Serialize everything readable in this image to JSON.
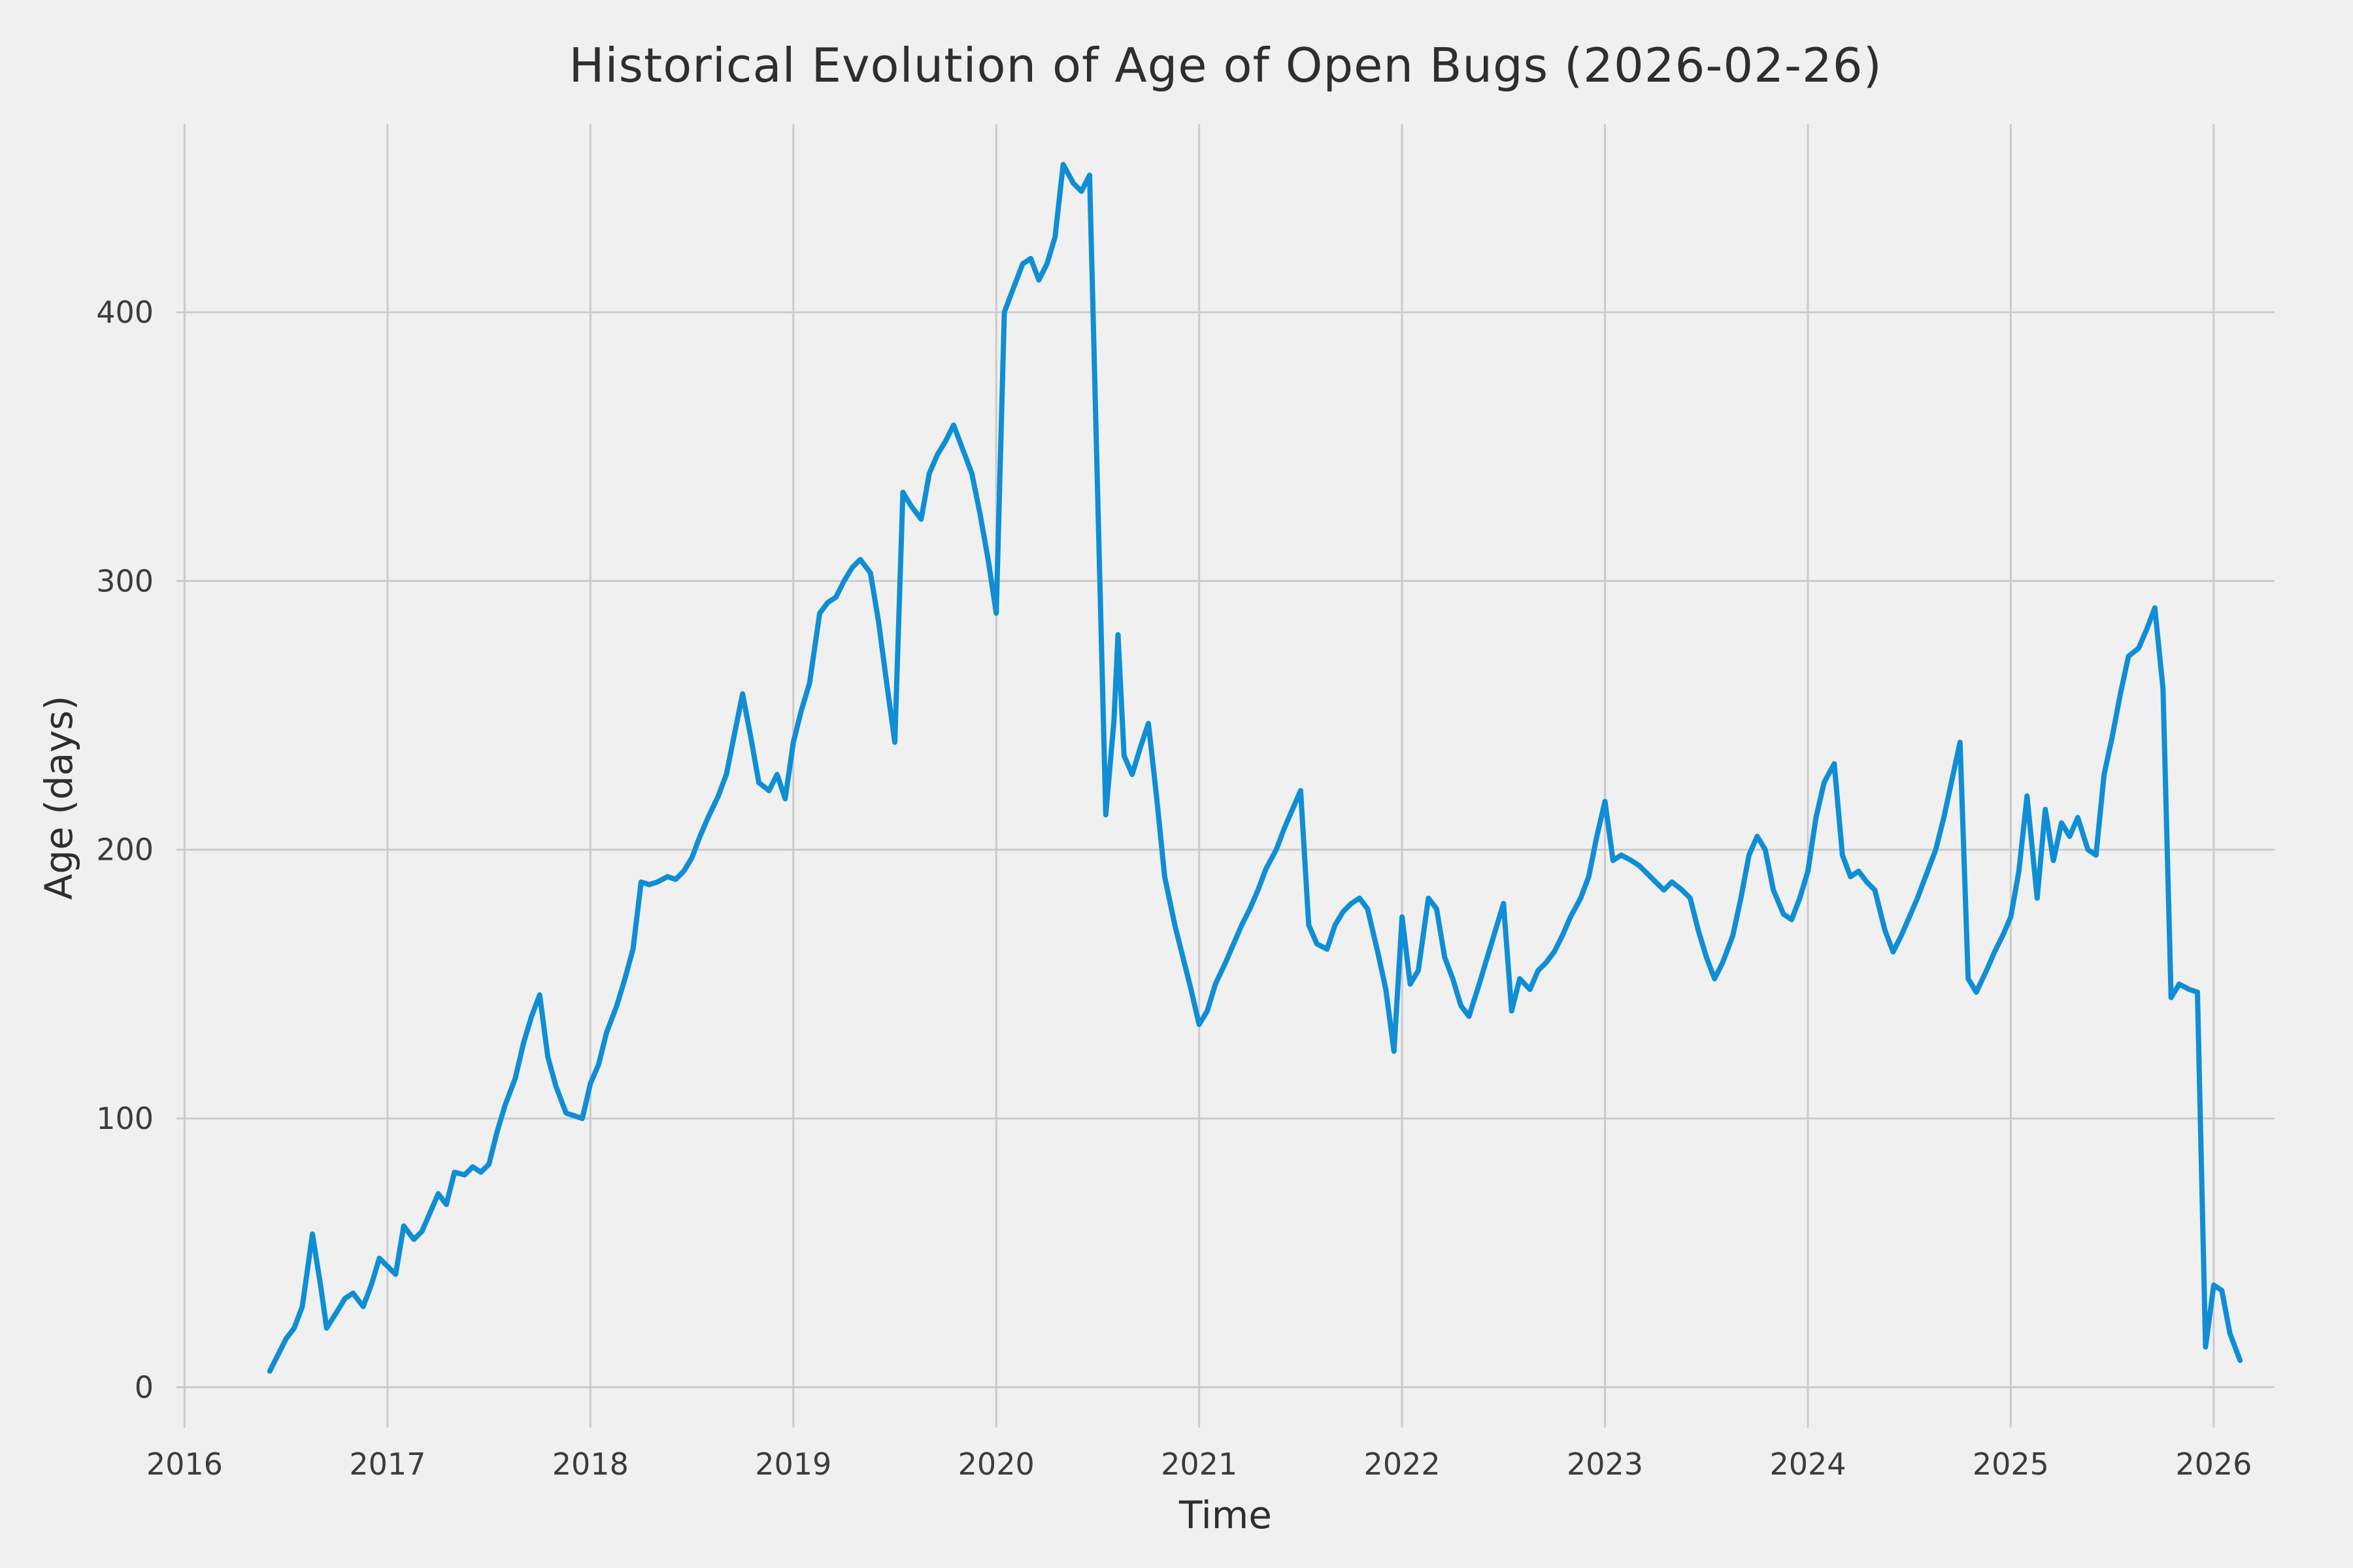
{
  "chart_data": {
    "type": "line",
    "title": "Historical Evolution of Age of Open Bugs (2026-02-26)",
    "xlabel": "Time",
    "ylabel": "Age (days)",
    "x_ticks": [
      2016,
      2017,
      2018,
      2019,
      2020,
      2021,
      2022,
      2023,
      2024,
      2025,
      2026
    ],
    "y_ticks": [
      0,
      100,
      200,
      300,
      400
    ],
    "xlim": [
      2015.96,
      2026.3
    ],
    "ylim": [
      -15,
      470
    ],
    "grid": true,
    "line_color": "#0f8ed5",
    "grid_color": "#cbcbcb",
    "background_color": "#f0f0f0",
    "text_color": "#3c3c3c",
    "series": [
      {
        "name": "open-bug-age-days",
        "points": [
          [
            2016.42,
            6
          ],
          [
            2016.46,
            12
          ],
          [
            2016.5,
            18
          ],
          [
            2016.54,
            22
          ],
          [
            2016.58,
            30
          ],
          [
            2016.63,
            57
          ],
          [
            2016.67,
            38
          ],
          [
            2016.7,
            22
          ],
          [
            2016.75,
            28
          ],
          [
            2016.79,
            33
          ],
          [
            2016.83,
            35
          ],
          [
            2016.88,
            30
          ],
          [
            2016.92,
            38
          ],
          [
            2016.96,
            48
          ],
          [
            2017.0,
            45
          ],
          [
            2017.04,
            42
          ],
          [
            2017.08,
            60
          ],
          [
            2017.13,
            55
          ],
          [
            2017.17,
            58
          ],
          [
            2017.21,
            65
          ],
          [
            2017.25,
            72
          ],
          [
            2017.29,
            68
          ],
          [
            2017.33,
            80
          ],
          [
            2017.38,
            79
          ],
          [
            2017.42,
            82
          ],
          [
            2017.46,
            80
          ],
          [
            2017.5,
            83
          ],
          [
            2017.54,
            95
          ],
          [
            2017.58,
            105
          ],
          [
            2017.63,
            115
          ],
          [
            2017.67,
            128
          ],
          [
            2017.71,
            138
          ],
          [
            2017.75,
            146
          ],
          [
            2017.79,
            123
          ],
          [
            2017.83,
            112
          ],
          [
            2017.88,
            102
          ],
          [
            2017.92,
            101
          ],
          [
            2017.96,
            100
          ],
          [
            2018.0,
            113
          ],
          [
            2018.04,
            120
          ],
          [
            2018.08,
            132
          ],
          [
            2018.13,
            142
          ],
          [
            2018.17,
            152
          ],
          [
            2018.21,
            163
          ],
          [
            2018.25,
            188
          ],
          [
            2018.29,
            187
          ],
          [
            2018.33,
            188
          ],
          [
            2018.38,
            190
          ],
          [
            2018.42,
            189
          ],
          [
            2018.46,
            192
          ],
          [
            2018.5,
            197
          ],
          [
            2018.54,
            205
          ],
          [
            2018.58,
            212
          ],
          [
            2018.63,
            220
          ],
          [
            2018.67,
            228
          ],
          [
            2018.71,
            243
          ],
          [
            2018.75,
            258
          ],
          [
            2018.79,
            242
          ],
          [
            2018.83,
            225
          ],
          [
            2018.88,
            222
          ],
          [
            2018.92,
            228
          ],
          [
            2018.96,
            219
          ],
          [
            2019.0,
            240
          ],
          [
            2019.04,
            252
          ],
          [
            2019.08,
            262
          ],
          [
            2019.13,
            288
          ],
          [
            2019.17,
            292
          ],
          [
            2019.21,
            294
          ],
          [
            2019.25,
            300
          ],
          [
            2019.29,
            305
          ],
          [
            2019.33,
            308
          ],
          [
            2019.38,
            303
          ],
          [
            2019.42,
            285
          ],
          [
            2019.46,
            262
          ],
          [
            2019.5,
            240
          ],
          [
            2019.54,
            333
          ],
          [
            2019.58,
            328
          ],
          [
            2019.63,
            323
          ],
          [
            2019.67,
            340
          ],
          [
            2019.71,
            347
          ],
          [
            2019.75,
            352
          ],
          [
            2019.79,
            358
          ],
          [
            2019.83,
            350
          ],
          [
            2019.88,
            340
          ],
          [
            2019.92,
            325
          ],
          [
            2019.96,
            308
          ],
          [
            2020.0,
            288
          ],
          [
            2020.04,
            400
          ],
          [
            2020.08,
            408
          ],
          [
            2020.13,
            418
          ],
          [
            2020.17,
            420
          ],
          [
            2020.21,
            412
          ],
          [
            2020.25,
            418
          ],
          [
            2020.29,
            428
          ],
          [
            2020.33,
            455
          ],
          [
            2020.38,
            448
          ],
          [
            2020.42,
            445
          ],
          [
            2020.46,
            451
          ],
          [
            2020.54,
            213
          ],
          [
            2020.58,
            248
          ],
          [
            2020.6,
            280
          ],
          [
            2020.63,
            235
          ],
          [
            2020.67,
            228
          ],
          [
            2020.71,
            238
          ],
          [
            2020.75,
            247
          ],
          [
            2020.79,
            220
          ],
          [
            2020.83,
            190
          ],
          [
            2020.88,
            172
          ],
          [
            2020.92,
            160
          ],
          [
            2020.96,
            148
          ],
          [
            2021.0,
            135
          ],
          [
            2021.04,
            140
          ],
          [
            2021.08,
            150
          ],
          [
            2021.13,
            158
          ],
          [
            2021.17,
            165
          ],
          [
            2021.21,
            172
          ],
          [
            2021.25,
            178
          ],
          [
            2021.29,
            185
          ],
          [
            2021.33,
            193
          ],
          [
            2021.38,
            200
          ],
          [
            2021.42,
            208
          ],
          [
            2021.46,
            215
          ],
          [
            2021.5,
            222
          ],
          [
            2021.54,
            172
          ],
          [
            2021.58,
            165
          ],
          [
            2021.63,
            163
          ],
          [
            2021.67,
            172
          ],
          [
            2021.71,
            177
          ],
          [
            2021.75,
            180
          ],
          [
            2021.79,
            182
          ],
          [
            2021.83,
            178
          ],
          [
            2021.88,
            162
          ],
          [
            2021.92,
            148
          ],
          [
            2021.96,
            125
          ],
          [
            2022.0,
            175
          ],
          [
            2022.04,
            150
          ],
          [
            2022.08,
            155
          ],
          [
            2022.13,
            182
          ],
          [
            2022.17,
            178
          ],
          [
            2022.21,
            160
          ],
          [
            2022.25,
            152
          ],
          [
            2022.29,
            142
          ],
          [
            2022.33,
            138
          ],
          [
            2022.38,
            150
          ],
          [
            2022.42,
            160
          ],
          [
            2022.46,
            170
          ],
          [
            2022.5,
            180
          ],
          [
            2022.54,
            140
          ],
          [
            2022.58,
            152
          ],
          [
            2022.63,
            148
          ],
          [
            2022.67,
            155
          ],
          [
            2022.71,
            158
          ],
          [
            2022.75,
            162
          ],
          [
            2022.79,
            168
          ],
          [
            2022.83,
            175
          ],
          [
            2022.88,
            182
          ],
          [
            2022.92,
            190
          ],
          [
            2022.96,
            205
          ],
          [
            2023.0,
            218
          ],
          [
            2023.04,
            196
          ],
          [
            2023.08,
            198
          ],
          [
            2023.13,
            196
          ],
          [
            2023.17,
            194
          ],
          [
            2023.21,
            191
          ],
          [
            2023.25,
            188
          ],
          [
            2023.29,
            185
          ],
          [
            2023.33,
            188
          ],
          [
            2023.38,
            185
          ],
          [
            2023.42,
            182
          ],
          [
            2023.46,
            170
          ],
          [
            2023.5,
            160
          ],
          [
            2023.54,
            152
          ],
          [
            2023.58,
            158
          ],
          [
            2023.63,
            168
          ],
          [
            2023.67,
            182
          ],
          [
            2023.71,
            198
          ],
          [
            2023.75,
            205
          ],
          [
            2023.79,
            200
          ],
          [
            2023.83,
            185
          ],
          [
            2023.88,
            176
          ],
          [
            2023.92,
            174
          ],
          [
            2023.96,
            182
          ],
          [
            2024.0,
            192
          ],
          [
            2024.04,
            212
          ],
          [
            2024.08,
            225
          ],
          [
            2024.13,
            232
          ],
          [
            2024.17,
            198
          ],
          [
            2024.21,
            190
          ],
          [
            2024.25,
            192
          ],
          [
            2024.29,
            188
          ],
          [
            2024.33,
            185
          ],
          [
            2024.38,
            170
          ],
          [
            2024.42,
            162
          ],
          [
            2024.46,
            168
          ],
          [
            2024.5,
            175
          ],
          [
            2024.54,
            182
          ],
          [
            2024.58,
            190
          ],
          [
            2024.63,
            200
          ],
          [
            2024.67,
            212
          ],
          [
            2024.71,
            226
          ],
          [
            2024.75,
            240
          ],
          [
            2024.79,
            152
          ],
          [
            2024.83,
            147
          ],
          [
            2024.88,
            155
          ],
          [
            2024.92,
            162
          ],
          [
            2024.96,
            168
          ],
          [
            2025.0,
            175
          ],
          [
            2025.04,
            192
          ],
          [
            2025.08,
            220
          ],
          [
            2025.13,
            182
          ],
          [
            2025.17,
            215
          ],
          [
            2025.21,
            196
          ],
          [
            2025.25,
            210
          ],
          [
            2025.29,
            205
          ],
          [
            2025.33,
            212
          ],
          [
            2025.38,
            200
          ],
          [
            2025.42,
            198
          ],
          [
            2025.46,
            228
          ],
          [
            2025.5,
            242
          ],
          [
            2025.54,
            258
          ],
          [
            2025.58,
            272
          ],
          [
            2025.63,
            275
          ],
          [
            2025.67,
            282
          ],
          [
            2025.71,
            290
          ],
          [
            2025.75,
            260
          ],
          [
            2025.79,
            145
          ],
          [
            2025.83,
            150
          ],
          [
            2025.88,
            148
          ],
          [
            2025.92,
            147
          ],
          [
            2025.96,
            15
          ],
          [
            2026.0,
            38
          ],
          [
            2026.04,
            36
          ],
          [
            2026.08,
            20
          ],
          [
            2026.13,
            10
          ]
        ]
      }
    ]
  }
}
